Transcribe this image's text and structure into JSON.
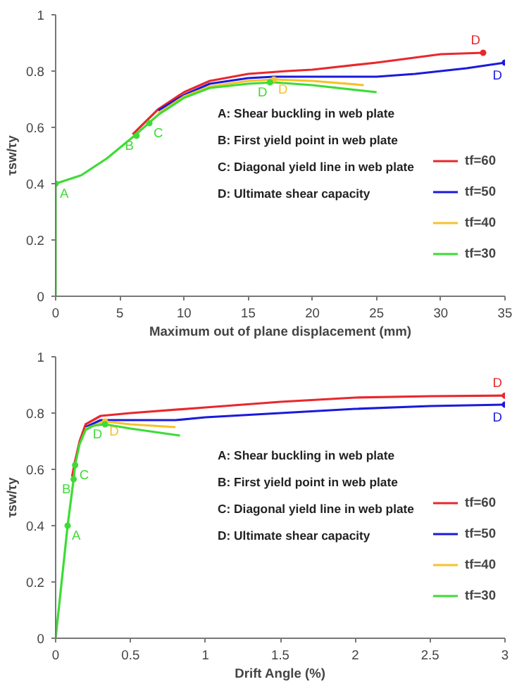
{
  "chart_data": [
    {
      "type": "line",
      "xlabel": "Maximum out of plane displacement (mm)",
      "ylabel": "τsw/τy",
      "xlim": [
        0,
        35
      ],
      "xticks": [
        0,
        5,
        10,
        15,
        20,
        25,
        30,
        35
      ],
      "ylim": [
        0,
        1
      ],
      "yticks": [
        0,
        0.2,
        0.4,
        0.6,
        0.8,
        1
      ],
      "grid": false,
      "legend": "right",
      "marker": "none",
      "line_style": "solid",
      "series": [
        {
          "name": "tf=60",
          "color": "#e8282d",
          "x": [
            6,
            7,
            8,
            10,
            12,
            15,
            18,
            20,
            25,
            30,
            33.3
          ],
          "values": [
            0.575,
            0.62,
            0.665,
            0.725,
            0.765,
            0.79,
            0.8,
            0.805,
            0.83,
            0.86,
            0.865
          ]
        },
        {
          "name": "tf=50",
          "color": "#1a1adc",
          "x": [
            8,
            10,
            12,
            15,
            17,
            20,
            25,
            28,
            32,
            35
          ],
          "values": [
            0.66,
            0.715,
            0.755,
            0.775,
            0.78,
            0.78,
            0.78,
            0.79,
            0.81,
            0.83
          ]
        },
        {
          "name": "tf=40",
          "color": "#f5c22a",
          "x": [
            8,
            10,
            12,
            15,
            17,
            20,
            24
          ],
          "values": [
            0.65,
            0.71,
            0.745,
            0.765,
            0.77,
            0.765,
            0.75
          ]
        },
        {
          "name": "tf=30",
          "color": "#3ddc35",
          "x": [
            0,
            0,
            2,
            4,
            6,
            7,
            8,
            10,
            12,
            15,
            17,
            20,
            25
          ],
          "values": [
            0,
            0.4,
            0.43,
            0.49,
            0.565,
            0.605,
            0.645,
            0.705,
            0.74,
            0.755,
            0.76,
            0.75,
            0.725
          ]
        }
      ],
      "annotations": [
        "A: Shear buckling in web plate",
        "B: First yield point in web plate",
        "C: Diagonal yield line in web plate",
        "D: Ultimate shear capacity",
        {
          "text": "A",
          "x": 0,
          "y": 0.4
        },
        {
          "text": "B",
          "x": 6.3,
          "y": 0.57
        },
        {
          "text": "C",
          "x": 7.3,
          "y": 0.615
        },
        {
          "text": "D",
          "x": 33.3,
          "y": 0.865
        },
        {
          "text": "D",
          "x": 35,
          "y": 0.83
        },
        {
          "text": "D",
          "x": 17,
          "y": 0.77
        },
        {
          "text": "D",
          "x": 16.7,
          "y": 0.76
        }
      ]
    },
    {
      "type": "line",
      "xlabel": "Drift Angle (%)",
      "ylabel": "τsw/τy",
      "xlim": [
        0,
        3
      ],
      "xticks": [
        0,
        0.5,
        1,
        1.5,
        2,
        2.5,
        3
      ],
      "ylim": [
        0,
        1
      ],
      "yticks": [
        0,
        0.2,
        0.4,
        0.6,
        0.8,
        1
      ],
      "grid": false,
      "legend": "right",
      "marker": "none",
      "line_style": "solid",
      "series": [
        {
          "name": "tf=60",
          "color": "#e8282d",
          "x": [
            0.11,
            0.13,
            0.16,
            0.2,
            0.3,
            0.5,
            1,
            1.5,
            2,
            2.5,
            3
          ],
          "values": [
            0.575,
            0.63,
            0.7,
            0.76,
            0.79,
            0.8,
            0.82,
            0.84,
            0.855,
            0.86,
            0.862
          ]
        },
        {
          "name": "tf=50",
          "color": "#1a1adc",
          "x": [
            0.2,
            0.3,
            0.5,
            0.8,
            1,
            1.5,
            2,
            2.5,
            3
          ],
          "values": [
            0.75,
            0.775,
            0.775,
            0.775,
            0.785,
            0.8,
            0.815,
            0.825,
            0.83
          ]
        },
        {
          "name": "tf=40",
          "color": "#f5c22a",
          "x": [
            0.2,
            0.33,
            0.5,
            0.8
          ],
          "values": [
            0.745,
            0.77,
            0.76,
            0.75
          ]
        },
        {
          "name": "tf=30",
          "color": "#3ddc35",
          "x": [
            0,
            0.08,
            0.12,
            0.13,
            0.16,
            0.2,
            0.25,
            0.33,
            0.5,
            0.83
          ],
          "values": [
            0,
            0.4,
            0.565,
            0.615,
            0.69,
            0.74,
            0.755,
            0.76,
            0.745,
            0.72
          ]
        }
      ],
      "annotations": [
        "A: Shear buckling in web plate",
        "B: First yield point in web plate",
        "C: Diagonal yield line in web plate",
        "D: Ultimate shear capacity",
        {
          "text": "A",
          "x": 0.08,
          "y": 0.4
        },
        {
          "text": "B",
          "x": 0.12,
          "y": 0.565
        },
        {
          "text": "C",
          "x": 0.13,
          "y": 0.615
        },
        {
          "text": "D",
          "x": 3,
          "y": 0.862
        },
        {
          "text": "D",
          "x": 3,
          "y": 0.83
        },
        {
          "text": "D",
          "x": 0.33,
          "y": 0.77
        },
        {
          "text": "D",
          "x": 0.33,
          "y": 0.76
        }
      ]
    }
  ]
}
